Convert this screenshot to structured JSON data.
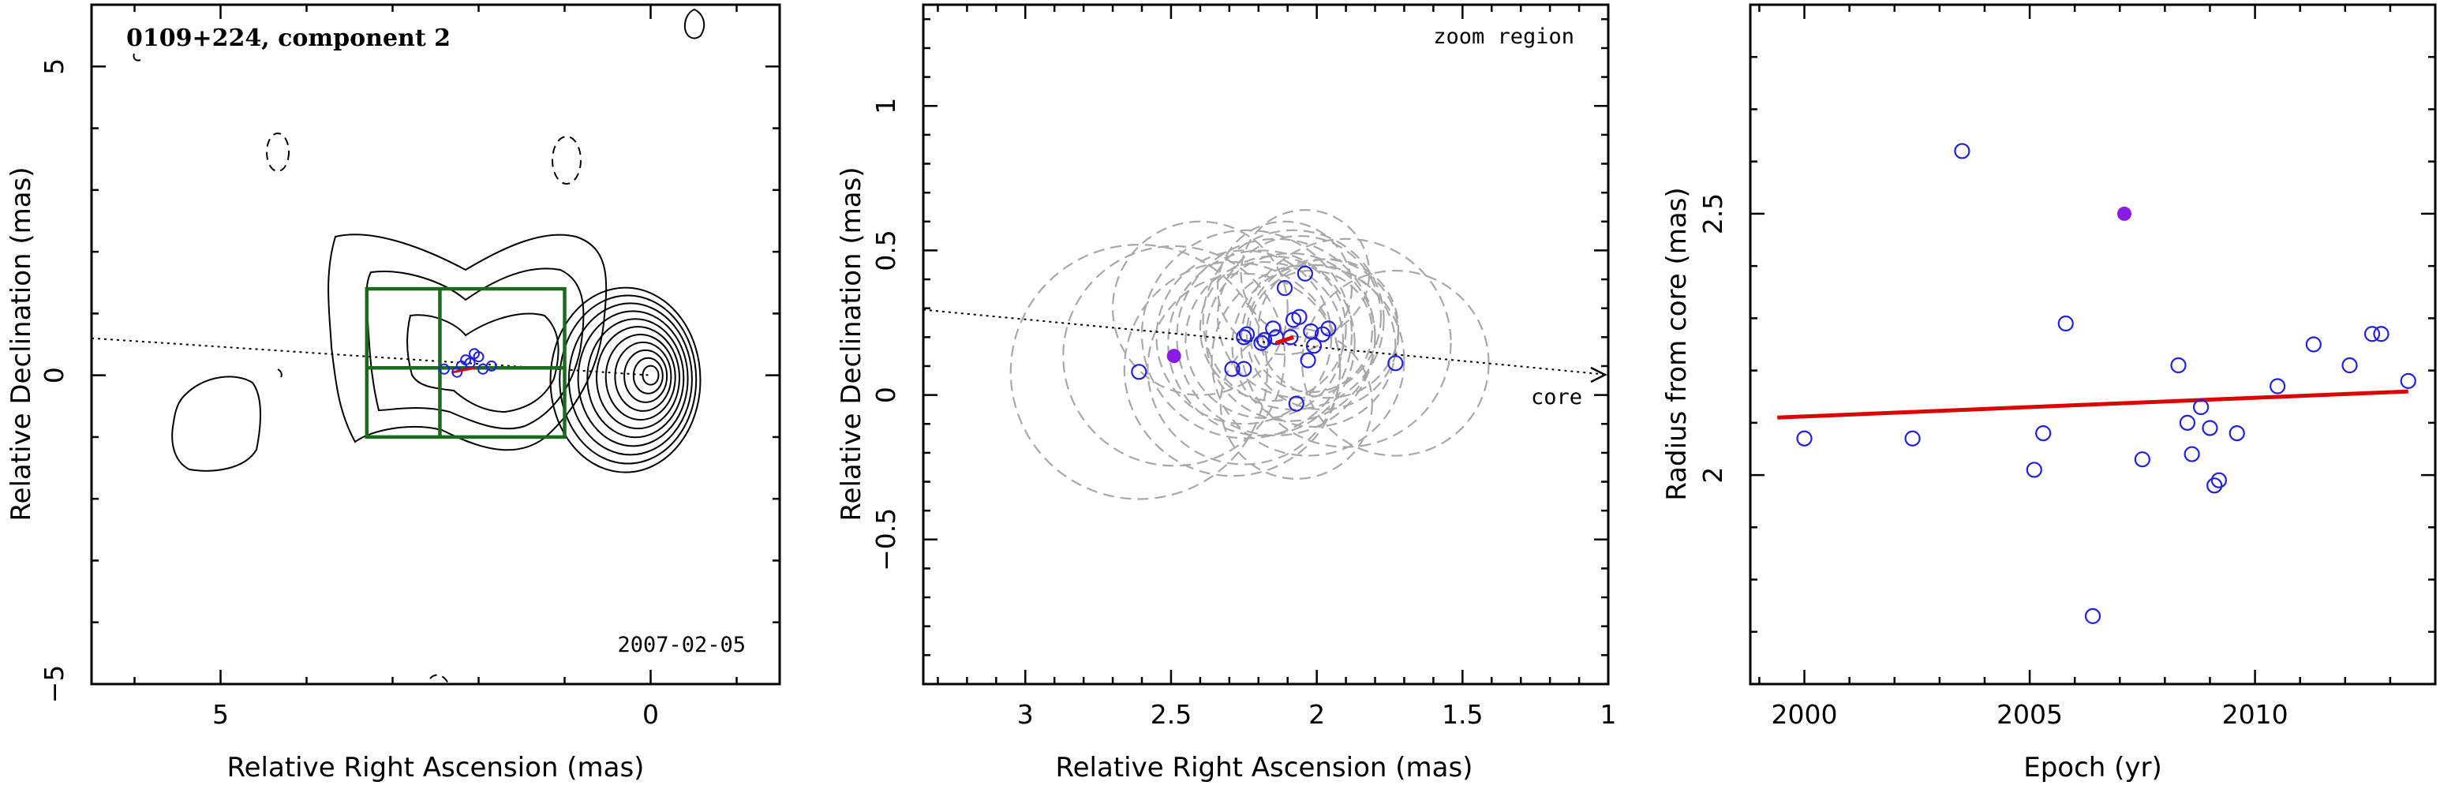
{
  "panel1": {
    "title": "0109+224, component 2",
    "date": "2007-02-05",
    "xlabel": "Relative Right Ascension (mas)",
    "ylabel": "Relative Declination (mas)",
    "xlim": [
      6.5,
      -1.5
    ],
    "ylim": [
      -5,
      6
    ],
    "xticks": [
      "5",
      "0"
    ],
    "yticks": [
      "5",
      "0",
      "−5"
    ],
    "core": {
      "ra": 0.0,
      "dec": 0.0
    },
    "zoom_box": {
      "ra": [
        3.3,
        1.0
      ],
      "dec": [
        -1.0,
        1.4
      ]
    },
    "points": [
      [
        2.1,
        0.2
      ],
      [
        2.0,
        0.3
      ],
      [
        2.2,
        0.15
      ],
      [
        1.95,
        0.1
      ],
      [
        2.4,
        0.1
      ],
      [
        2.15,
        0.25
      ],
      [
        2.05,
        0.35
      ],
      [
        2.25,
        0.05
      ],
      [
        1.85,
        0.15
      ]
    ],
    "colors": {
      "box": "#1a6b1a",
      "points": "#2222dd",
      "contours": "#000000"
    }
  },
  "panel2": {
    "annotation": "zoom region",
    "core_label": "core",
    "xlabel": "Relative Right Ascension (mas)",
    "ylabel": "Relative Declination (mas)",
    "xlim": [
      3.35,
      1.0
    ],
    "ylim": [
      -1.0,
      1.35
    ],
    "xticks": [
      "3",
      "2.5",
      "2",
      "1.5",
      "1"
    ],
    "yticks": [
      "1",
      "0.5",
      "0",
      "−0.5"
    ],
    "highlight": {
      "ra": 2.49,
      "dec": 0.135
    },
    "points": [
      [
        2.61,
        0.08
      ],
      [
        2.29,
        0.09
      ],
      [
        2.25,
        0.09
      ],
      [
        2.25,
        0.2
      ],
      [
        2.24,
        0.21
      ],
      [
        2.19,
        0.18
      ],
      [
        2.18,
        0.19
      ],
      [
        2.15,
        0.23
      ],
      [
        2.14,
        0.2
      ],
      [
        2.11,
        0.37
      ],
      [
        2.09,
        0.2
      ],
      [
        2.08,
        0.26
      ],
      [
        2.07,
        -0.03
      ],
      [
        2.06,
        0.27
      ],
      [
        2.04,
        0.42
      ],
      [
        2.03,
        0.12
      ],
      [
        2.02,
        0.22
      ],
      [
        2.01,
        0.17
      ],
      [
        1.98,
        0.21
      ],
      [
        1.96,
        0.23
      ],
      [
        1.73,
        0.11
      ]
    ],
    "fit_segment": [
      [
        2.14,
        0.18
      ],
      [
        2.08,
        0.2
      ]
    ],
    "colors": {
      "highlight": "#8a1ae6",
      "points": "#2222dd",
      "fit": "#e00000",
      "beams": "#a8a8a8"
    }
  },
  "panel3": {
    "xlabel": "Epoch (yr)",
    "ylabel": "Radius from core (mas)",
    "xlim": [
      1998.8,
      2014.0
    ],
    "ylim": [
      1.6,
      2.9
    ],
    "xticks": [
      "2000",
      "2005",
      "2010"
    ],
    "yticks": [
      "2",
      "2.5"
    ],
    "highlight": {
      "epoch": 2007.1,
      "radius": 2.5
    },
    "points": [
      [
        2000.0,
        2.07
      ],
      [
        2002.4,
        2.07
      ],
      [
        2003.5,
        2.62
      ],
      [
        2005.1,
        2.01
      ],
      [
        2005.3,
        2.08
      ],
      [
        2005.8,
        2.29
      ],
      [
        2006.4,
        1.73
      ],
      [
        2007.5,
        2.03
      ],
      [
        2008.3,
        2.21
      ],
      [
        2008.5,
        2.1
      ],
      [
        2008.6,
        2.04
      ],
      [
        2008.8,
        2.13
      ],
      [
        2009.0,
        2.09
      ],
      [
        2009.1,
        1.98
      ],
      [
        2009.2,
        1.99
      ],
      [
        2009.6,
        2.08
      ],
      [
        2010.5,
        2.17
      ],
      [
        2011.3,
        2.25
      ],
      [
        2012.1,
        2.21
      ],
      [
        2012.6,
        2.27
      ],
      [
        2012.8,
        2.27
      ],
      [
        2013.4,
        2.18
      ]
    ],
    "fit": {
      "x": [
        1999.4,
        2013.4
      ],
      "y": [
        2.11,
        2.16
      ]
    },
    "colors": {
      "highlight": "#8a1ae6",
      "points": "#2222dd",
      "fit": "#e00000"
    }
  }
}
